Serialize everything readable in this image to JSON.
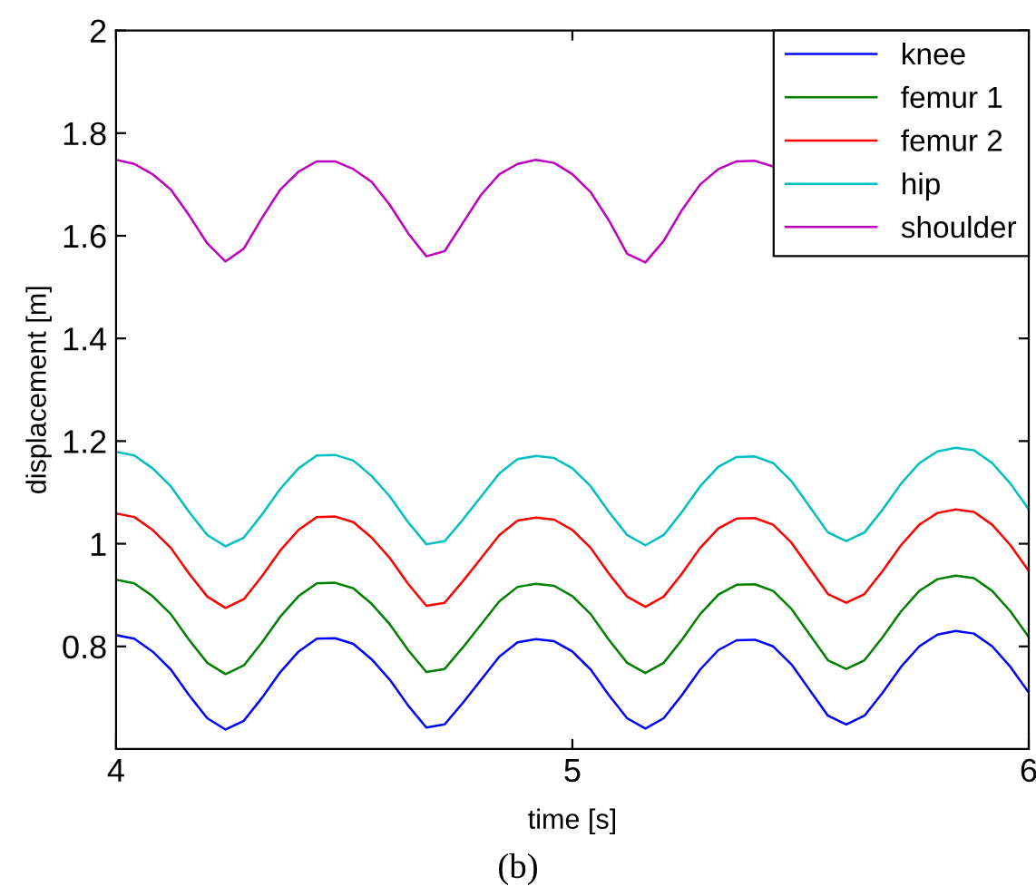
{
  "chart_data": {
    "type": "line",
    "xlabel": "time [s]",
    "ylabel": "displacement [m]",
    "annotations": [
      "(b)"
    ],
    "x": [
      4.0,
      4.04,
      4.08,
      4.12,
      4.16,
      4.2,
      4.24,
      4.28,
      4.32,
      4.36,
      4.4,
      4.44,
      4.48,
      4.52,
      4.56,
      4.6,
      4.64,
      4.68,
      4.72,
      4.76,
      4.8,
      4.84,
      4.88,
      4.92,
      4.96,
      5.0,
      5.04,
      5.08,
      5.12,
      5.16,
      5.2,
      5.24,
      5.28,
      5.32,
      5.36,
      5.4,
      5.44,
      5.48,
      5.52,
      5.56,
      5.6,
      5.64,
      5.68,
      5.72,
      5.76,
      5.8,
      5.84,
      5.88,
      5.92,
      5.96,
      6.0
    ],
    "series": [
      {
        "name": "knee",
        "color": "#0000ff",
        "values": [
          0.822,
          0.815,
          0.79,
          0.755,
          0.705,
          0.66,
          0.638,
          0.655,
          0.7,
          0.75,
          0.79,
          0.815,
          0.816,
          0.805,
          0.775,
          0.735,
          0.685,
          0.642,
          0.648,
          0.69,
          0.735,
          0.78,
          0.808,
          0.814,
          0.81,
          0.79,
          0.755,
          0.705,
          0.66,
          0.64,
          0.66,
          0.705,
          0.755,
          0.793,
          0.812,
          0.813,
          0.8,
          0.765,
          0.715,
          0.665,
          0.648,
          0.665,
          0.71,
          0.76,
          0.8,
          0.823,
          0.83,
          0.825,
          0.8,
          0.76,
          0.71
        ]
      },
      {
        "name": "femur 1",
        "color": "#008000",
        "values": [
          0.93,
          0.923,
          0.898,
          0.863,
          0.813,
          0.768,
          0.746,
          0.763,
          0.808,
          0.858,
          0.898,
          0.923,
          0.924,
          0.913,
          0.883,
          0.843,
          0.793,
          0.75,
          0.756,
          0.798,
          0.843,
          0.888,
          0.916,
          0.922,
          0.918,
          0.898,
          0.863,
          0.813,
          0.768,
          0.748,
          0.768,
          0.813,
          0.863,
          0.901,
          0.92,
          0.921,
          0.908,
          0.873,
          0.823,
          0.773,
          0.756,
          0.773,
          0.818,
          0.868,
          0.908,
          0.931,
          0.938,
          0.933,
          0.908,
          0.868,
          0.818
        ]
      },
      {
        "name": "femur 2",
        "color": "#ff0000",
        "values": [
          1.059,
          1.052,
          1.027,
          0.992,
          0.942,
          0.897,
          0.875,
          0.892,
          0.937,
          0.987,
          1.027,
          1.052,
          1.053,
          1.042,
          1.012,
          0.972,
          0.922,
          0.879,
          0.885,
          0.927,
          0.972,
          1.017,
          1.045,
          1.051,
          1.047,
          1.027,
          0.992,
          0.942,
          0.897,
          0.877,
          0.897,
          0.942,
          0.992,
          1.03,
          1.049,
          1.05,
          1.037,
          1.002,
          0.952,
          0.902,
          0.885,
          0.902,
          0.947,
          0.997,
          1.037,
          1.06,
          1.067,
          1.062,
          1.037,
          0.997,
          0.947
        ]
      },
      {
        "name": "hip",
        "color": "#00bfbf",
        "values": [
          1.179,
          1.172,
          1.147,
          1.112,
          1.062,
          1.017,
          0.995,
          1.012,
          1.057,
          1.107,
          1.147,
          1.172,
          1.173,
          1.162,
          1.132,
          1.092,
          1.042,
          0.999,
          1.005,
          1.047,
          1.092,
          1.137,
          1.165,
          1.171,
          1.167,
          1.147,
          1.112,
          1.062,
          1.017,
          0.997,
          1.017,
          1.062,
          1.112,
          1.15,
          1.169,
          1.17,
          1.157,
          1.122,
          1.072,
          1.022,
          1.005,
          1.022,
          1.067,
          1.117,
          1.157,
          1.18,
          1.187,
          1.182,
          1.157,
          1.117,
          1.067
        ]
      },
      {
        "name": "shoulder",
        "color": "#bf00bf",
        "values": [
          1.748,
          1.74,
          1.72,
          1.69,
          1.64,
          1.585,
          1.55,
          1.575,
          1.635,
          1.69,
          1.725,
          1.745,
          1.745,
          1.73,
          1.705,
          1.66,
          1.605,
          1.56,
          1.57,
          1.625,
          1.68,
          1.72,
          1.74,
          1.748,
          1.742,
          1.72,
          1.685,
          1.63,
          1.565,
          1.548,
          1.59,
          1.65,
          1.7,
          1.73,
          1.745,
          1.746,
          1.735,
          null,
          null,
          null,
          null,
          null,
          null,
          null,
          null,
          null,
          null,
          null,
          null,
          null,
          null
        ]
      }
    ],
    "xlim": [
      4,
      6
    ],
    "xticks": [
      4,
      5,
      6
    ],
    "ylim": [
      0.6,
      2
    ],
    "yticks": [
      0.8,
      1,
      1.2,
      1.4,
      1.6,
      1.8,
      2
    ],
    "legend": "top right",
    "grid": false,
    "marker": "none",
    "line_style": "solid"
  }
}
